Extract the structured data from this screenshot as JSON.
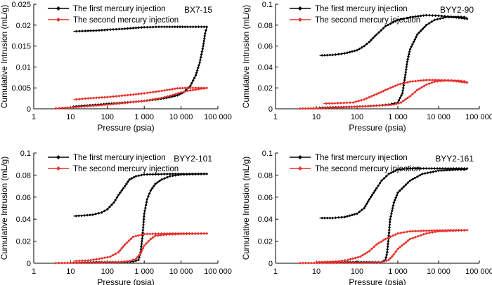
{
  "legend_labels": {
    "first": "The first mercury injection",
    "second": "The second mercury injection"
  },
  "colors": {
    "first": "#000000",
    "second": "#e8302a",
    "axis": "#000000",
    "background": "#ffffff"
  },
  "chart_data": [
    {
      "type": "line",
      "sample": "BX7-15",
      "xscale": "log",
      "xlabel": "Pressure (psia)",
      "ylabel": "Cumulative Intrusion (mL/g)",
      "xlim": [
        1,
        100000
      ],
      "ylim": [
        0,
        0.025
      ],
      "xticks": [
        "1",
        "10",
        "100",
        "1 000",
        "10 000",
        "100 000"
      ],
      "yticks": [
        "0",
        "0.005",
        "0.01",
        "0.015",
        "0.02",
        "0.025"
      ],
      "legend": "top-left",
      "grid": false,
      "series": [
        {
          "name": "The first mercury injection",
          "color": "#000000",
          "intrusion": [
            [
              12,
              0.0005
            ],
            [
              20,
              0.0007
            ],
            [
              40,
              0.0009
            ],
            [
              80,
              0.0011
            ],
            [
              150,
              0.0013
            ],
            [
              300,
              0.0015
            ],
            [
              600,
              0.0017
            ],
            [
              1000,
              0.0019
            ],
            [
              2000,
              0.0022
            ],
            [
              4000,
              0.0026
            ],
            [
              8000,
              0.0032
            ],
            [
              12000,
              0.004
            ],
            [
              18000,
              0.0055
            ],
            [
              25000,
              0.008
            ],
            [
              32000,
              0.011
            ],
            [
              40000,
              0.015
            ],
            [
              45000,
              0.018
            ],
            [
              50000,
              0.0195
            ]
          ],
          "extrusion": [
            [
              50000,
              0.0196
            ],
            [
              30000,
              0.0196
            ],
            [
              15000,
              0.0196
            ],
            [
              8000,
              0.0196
            ],
            [
              3000,
              0.0196
            ],
            [
              1000,
              0.0195
            ],
            [
              500,
              0.0193
            ],
            [
              250,
              0.0191
            ],
            [
              100,
              0.0189
            ],
            [
              50,
              0.0187
            ],
            [
              25,
              0.0186
            ],
            [
              12,
              0.0185
            ]
          ]
        },
        {
          "name": "The second mercury injection",
          "color": "#e8302a",
          "intrusion": [
            [
              4,
              0.0001
            ],
            [
              6,
              0.0002
            ],
            [
              10,
              0.0003
            ],
            [
              20,
              0.0005
            ],
            [
              50,
              0.0008
            ],
            [
              100,
              0.001
            ],
            [
              300,
              0.0014
            ],
            [
              1000,
              0.0019
            ],
            [
              3000,
              0.0026
            ],
            [
              6000,
              0.0033
            ],
            [
              10000,
              0.0039
            ],
            [
              15000,
              0.0043
            ],
            [
              25000,
              0.0046
            ],
            [
              35000,
              0.0048
            ],
            [
              50000,
              0.0049
            ]
          ],
          "extrusion": [
            [
              50000,
              0.005
            ],
            [
              25000,
              0.005
            ],
            [
              15000,
              0.005
            ],
            [
              8000,
              0.0049
            ],
            [
              3000,
              0.0043
            ],
            [
              1000,
              0.0037
            ],
            [
              300,
              0.0032
            ],
            [
              100,
              0.0028
            ],
            [
              30,
              0.0025
            ],
            [
              12,
              0.0022
            ]
          ]
        }
      ]
    },
    {
      "type": "line",
      "sample": "BYY2-90",
      "xscale": "log",
      "xlabel": "Pressure (psia)",
      "ylabel": "Cumulative Intrusion (mL/g)",
      "xlim": [
        1,
        100000
      ],
      "ylim": [
        0,
        0.1
      ],
      "xticks": [
        "1",
        "10",
        "100",
        "1 000",
        "10 000",
        "100 000"
      ],
      "yticks": [
        "0",
        "0.02",
        "0.04",
        "0.06",
        "0.08",
        "0.1"
      ],
      "legend": "top-left",
      "grid": false,
      "series": [
        {
          "name": "The first mercury injection",
          "color": "#000000",
          "intrusion": [
            [
              12,
              0.001
            ],
            [
              30,
              0.0015
            ],
            [
              100,
              0.002
            ],
            [
              300,
              0.003
            ],
            [
              600,
              0.004
            ],
            [
              1000,
              0.006
            ],
            [
              1300,
              0.015
            ],
            [
              1500,
              0.03
            ],
            [
              1700,
              0.045
            ],
            [
              2000,
              0.057
            ],
            [
              3000,
              0.071
            ],
            [
              5000,
              0.08
            ],
            [
              8000,
              0.085
            ],
            [
              15000,
              0.0875
            ],
            [
              30000,
              0.088
            ],
            [
              50000,
              0.0875
            ]
          ],
          "extrusion": [
            [
              50000,
              0.086
            ],
            [
              20000,
              0.088
            ],
            [
              10000,
              0.089
            ],
            [
              5000,
              0.0895
            ],
            [
              2000,
              0.0875
            ],
            [
              1000,
              0.085
            ],
            [
              500,
              0.079
            ],
            [
              300,
              0.071
            ],
            [
              200,
              0.064
            ],
            [
              150,
              0.06
            ],
            [
              100,
              0.056
            ],
            [
              50,
              0.053
            ],
            [
              25,
              0.0515
            ],
            [
              12,
              0.051
            ]
          ]
        },
        {
          "name": "The second mercury injection",
          "color": "#e8302a",
          "intrusion": [
            [
              4,
              0.0002
            ],
            [
              10,
              0.0005
            ],
            [
              30,
              0.001
            ],
            [
              100,
              0.002
            ],
            [
              300,
              0.003
            ],
            [
              800,
              0.004
            ],
            [
              1200,
              0.006
            ],
            [
              2000,
              0.012
            ],
            [
              3000,
              0.018
            ],
            [
              5000,
              0.023
            ],
            [
              8000,
              0.026
            ],
            [
              15000,
              0.027
            ],
            [
              30000,
              0.027
            ],
            [
              50000,
              0.026
            ]
          ],
          "extrusion": [
            [
              50000,
              0.025
            ],
            [
              20000,
              0.027
            ],
            [
              10000,
              0.0275
            ],
            [
              5000,
              0.0275
            ],
            [
              2000,
              0.026
            ],
            [
              1000,
              0.023
            ],
            [
              500,
              0.018
            ],
            [
              300,
              0.014
            ],
            [
              150,
              0.009
            ],
            [
              80,
              0.006
            ],
            [
              40,
              0.0055
            ],
            [
              15,
              0.005
            ]
          ]
        }
      ]
    },
    {
      "type": "line",
      "sample": "BYY2-101",
      "xscale": "log",
      "xlabel": "Pressure (psia)",
      "ylabel": "Cumulative Intrusion (mL/g)",
      "xlim": [
        1,
        100000
      ],
      "ylim": [
        0,
        0.1
      ],
      "xticks": [
        "1",
        "10",
        "100",
        "1 000",
        "10 000",
        "100 000"
      ],
      "yticks": [
        "0",
        "0.02",
        "0.04",
        "0.06",
        "0.08",
        "0.1"
      ],
      "legend": "top-left",
      "grid": false,
      "series": [
        {
          "name": "The first mercury injection",
          "color": "#000000",
          "intrusion": [
            [
              12,
              0.0005
            ],
            [
              50,
              0.001
            ],
            [
              200,
              0.001
            ],
            [
              500,
              0.0015
            ],
            [
              700,
              0.003
            ],
            [
              800,
              0.01
            ],
            [
              900,
              0.025
            ],
            [
              1000,
              0.045
            ],
            [
              1200,
              0.058
            ],
            [
              1500,
              0.066
            ],
            [
              2000,
              0.072
            ],
            [
              3000,
              0.076
            ],
            [
              5000,
              0.079
            ],
            [
              10000,
              0.0805
            ],
            [
              30000,
              0.081
            ],
            [
              50000,
              0.0812
            ]
          ],
          "extrusion": [
            [
              50000,
              0.081
            ],
            [
              20000,
              0.081
            ],
            [
              5000,
              0.081
            ],
            [
              1000,
              0.0805
            ],
            [
              600,
              0.079
            ],
            [
              400,
              0.076
            ],
            [
              300,
              0.07
            ],
            [
              200,
              0.062
            ],
            [
              150,
              0.055
            ],
            [
              100,
              0.049
            ],
            [
              70,
              0.046
            ],
            [
              40,
              0.044
            ],
            [
              20,
              0.0432
            ],
            [
              12,
              0.0428
            ]
          ]
        },
        {
          "name": "The second mercury injection",
          "color": "#e8302a",
          "intrusion": [
            [
              4,
              0.0002
            ],
            [
              10,
              0.0004
            ],
            [
              50,
              0.0006
            ],
            [
              200,
              0.001
            ],
            [
              400,
              0.002
            ],
            [
              600,
              0.004
            ],
            [
              800,
              0.009
            ],
            [
              1000,
              0.016
            ],
            [
              1500,
              0.022
            ],
            [
              2000,
              0.025
            ],
            [
              4000,
              0.026
            ],
            [
              10000,
              0.0265
            ],
            [
              50000,
              0.027
            ]
          ],
          "extrusion": [
            [
              50000,
              0.027
            ],
            [
              20000,
              0.027
            ],
            [
              5000,
              0.027
            ],
            [
              1000,
              0.0265
            ],
            [
              500,
              0.024
            ],
            [
              300,
              0.017
            ],
            [
              200,
              0.01
            ],
            [
              120,
              0.006
            ],
            [
              60,
              0.004
            ],
            [
              30,
              0.0025
            ],
            [
              12,
              0.002
            ]
          ]
        }
      ]
    },
    {
      "type": "line",
      "sample": "BYY2-161",
      "xscale": "log",
      "xlabel": "Pressure (psia)",
      "ylabel": "Cumulative Intrusion (mL/g)",
      "xlim": [
        1,
        100000
      ],
      "ylim": [
        0,
        0.1
      ],
      "xticks": [
        "1",
        "10",
        "100",
        "1 000",
        "10 000",
        "100 000"
      ],
      "yticks": [
        "0",
        "0.02",
        "0.04",
        "0.06",
        "0.08",
        "0.1"
      ],
      "legend": "top-left",
      "grid": false,
      "series": [
        {
          "name": "The first mercury injection",
          "color": "#000000",
          "intrusion": [
            [
              12,
              0.0005
            ],
            [
              50,
              0.001
            ],
            [
              200,
              0.001
            ],
            [
              400,
              0.001
            ],
            [
              500,
              0.003
            ],
            [
              550,
              0.01
            ],
            [
              600,
              0.025
            ],
            [
              650,
              0.04
            ],
            [
              800,
              0.055
            ],
            [
              1000,
              0.064
            ],
            [
              2000,
              0.075
            ],
            [
              4000,
              0.081
            ],
            [
              10000,
              0.084
            ],
            [
              30000,
              0.085
            ],
            [
              50000,
              0.085
            ]
          ],
          "extrusion": [
            [
              50000,
              0.086
            ],
            [
              20000,
              0.086
            ],
            [
              5000,
              0.086
            ],
            [
              2000,
              0.086
            ],
            [
              1000,
              0.085
            ],
            [
              600,
              0.081
            ],
            [
              400,
              0.075
            ],
            [
              300,
              0.068
            ],
            [
              200,
              0.058
            ],
            [
              150,
              0.05
            ],
            [
              100,
              0.045
            ],
            [
              50,
              0.042
            ],
            [
              25,
              0.041
            ],
            [
              12,
              0.041
            ]
          ]
        },
        {
          "name": "The second mercury injection",
          "color": "#e8302a",
          "intrusion": [
            [
              4,
              0.0002
            ],
            [
              50,
              0.0004
            ],
            [
              200,
              0.0006
            ],
            [
              400,
              0.001
            ],
            [
              600,
              0.003
            ],
            [
              800,
              0.008
            ],
            [
              1000,
              0.013
            ],
            [
              2000,
              0.022
            ],
            [
              5000,
              0.027
            ],
            [
              10000,
              0.029
            ],
            [
              50000,
              0.03
            ]
          ],
          "extrusion": [
            [
              50000,
              0.03
            ],
            [
              20000,
              0.03
            ],
            [
              5000,
              0.0295
            ],
            [
              2000,
              0.029
            ],
            [
              1000,
              0.027
            ],
            [
              500,
              0.022
            ],
            [
              300,
              0.017
            ],
            [
              200,
              0.011
            ],
            [
              120,
              0.006
            ],
            [
              60,
              0.003
            ],
            [
              30,
              0.0015
            ],
            [
              10,
              0.001
            ]
          ]
        }
      ]
    }
  ]
}
